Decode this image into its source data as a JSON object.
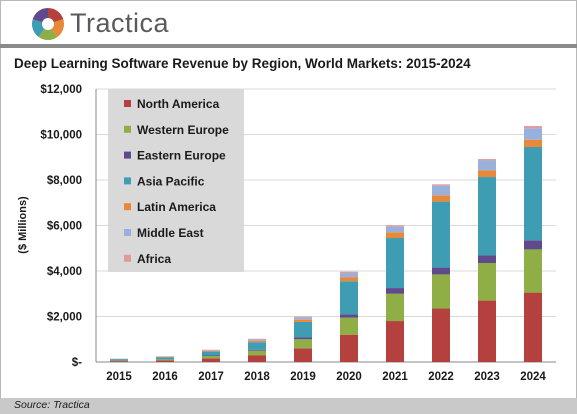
{
  "header": {
    "brand": "Tractica",
    "title": "Deep Learning Software Revenue by Region, World Markets: 2015-2024"
  },
  "footer": {
    "source": "Source: Tractica"
  },
  "chart_data": {
    "type": "bar",
    "stacked": true,
    "title": "Deep Learning Software Revenue by Region, World Markets: 2015-2024",
    "xlabel": "",
    "ylabel": "($ Millions)",
    "ylim": [
      0,
      12000
    ],
    "yticks": [
      0,
      2000,
      4000,
      6000,
      8000,
      10000,
      12000
    ],
    "ytick_labels": [
      "$-",
      "$2,000",
      "$4,000",
      "$6,000",
      "$8,000",
      "$10,000",
      "$12,000"
    ],
    "grid": true,
    "legend_position": "top-left",
    "categories": [
      "2015",
      "2016",
      "2017",
      "2018",
      "2019",
      "2020",
      "2021",
      "2022",
      "2023",
      "2024"
    ],
    "series": [
      {
        "name": "North America",
        "color": "#b5413e",
        "values": [
          40,
          70,
          160,
          300,
          600,
          1200,
          1800,
          2350,
          2700,
          3050
        ]
      },
      {
        "name": "Western Europe",
        "color": "#8fae45",
        "values": [
          20,
          40,
          100,
          200,
          400,
          750,
          1200,
          1500,
          1650,
          1900
        ]
      },
      {
        "name": "Eastern Europe",
        "color": "#5f4a8b",
        "values": [
          5,
          10,
          25,
          40,
          80,
          150,
          250,
          300,
          330,
          400
        ]
      },
      {
        "name": "Asia Pacific",
        "color": "#3f9db3",
        "values": [
          60,
          90,
          170,
          330,
          680,
          1450,
          2200,
          2900,
          3450,
          4100
        ]
      },
      {
        "name": "Latin America",
        "color": "#e8893a",
        "values": [
          10,
          20,
          40,
          60,
          100,
          180,
          250,
          280,
          300,
          320
        ]
      },
      {
        "name": "Middle East",
        "color": "#9ab0dc",
        "values": [
          10,
          15,
          35,
          60,
          90,
          180,
          250,
          420,
          430,
          500
        ]
      },
      {
        "name": "Africa",
        "color": "#dc9c9a",
        "values": [
          5,
          10,
          10,
          30,
          50,
          60,
          60,
          60,
          60,
          100
        ]
      }
    ]
  }
}
